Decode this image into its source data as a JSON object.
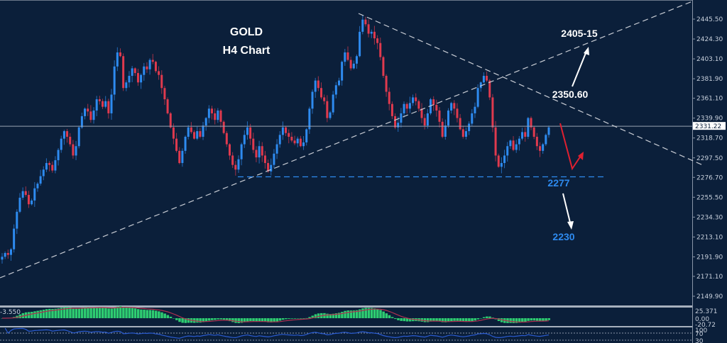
{
  "chart_data": {
    "type": "candlestick",
    "title": "GOLD",
    "subtitle": "H4 Chart",
    "symbol": "GOLD",
    "timeframe": "H4",
    "current_price": "2331.22",
    "y_axis": {
      "ticks": [
        "2445.50",
        "2424.30",
        "2403.10",
        "2381.90",
        "2361.10",
        "2339.90",
        "2318.70",
        "2297.50",
        "2276.70",
        "2255.50",
        "2234.30",
        "2213.10",
        "2191.90",
        "2171.10",
        "2149.90"
      ],
      "range": [
        2140,
        2465
      ]
    },
    "annotations": {
      "target_up_label": "2405-15",
      "pivot_label": "2350.60",
      "support_label": "2277",
      "target_down_label": "2230"
    },
    "closes": [
      2192,
      2196,
      2194,
      2200,
      2222,
      2240,
      2255,
      2262,
      2258,
      2248,
      2252,
      2265,
      2270,
      2278,
      2285,
      2292,
      2290,
      2284,
      2295,
      2306,
      2318,
      2326,
      2320,
      2312,
      2300,
      2310,
      2330,
      2342,
      2350,
      2347,
      2338,
      2348,
      2360,
      2358,
      2352,
      2358,
      2345,
      2365,
      2395,
      2410,
      2406,
      2372,
      2378,
      2385,
      2393,
      2388,
      2378,
      2386,
      2395,
      2392,
      2402,
      2400,
      2390,
      2386,
      2372,
      2360,
      2345,
      2330,
      2318,
      2305,
      2292,
      2305,
      2320,
      2330,
      2325,
      2318,
      2326,
      2320,
      2332,
      2340,
      2350,
      2345,
      2338,
      2348,
      2336,
      2324,
      2312,
      2300,
      2290,
      2285,
      2296,
      2312,
      2322,
      2330,
      2318,
      2306,
      2298,
      2310,
      2300,
      2292,
      2283,
      2290,
      2302,
      2312,
      2322,
      2330,
      2324,
      2320,
      2316,
      2313,
      2318,
      2310,
      2314,
      2328,
      2350,
      2368,
      2380,
      2372,
      2362,
      2358,
      2340,
      2346,
      2365,
      2375,
      2380,
      2400,
      2410,
      2402,
      2393,
      2398,
      2406,
      2432,
      2445,
      2440,
      2430,
      2432,
      2425,
      2420,
      2405,
      2385,
      2368,
      2355,
      2342,
      2330,
      2335,
      2345,
      2355,
      2350,
      2356,
      2362,
      2358,
      2350,
      2340,
      2332,
      2345,
      2360,
      2354,
      2348,
      2336,
      2320,
      2332,
      2348,
      2356,
      2350,
      2340,
      2328,
      2320,
      2326,
      2334,
      2345,
      2352,
      2372,
      2378,
      2385,
      2380,
      2362,
      2330,
      2300,
      2288,
      2292,
      2300,
      2310,
      2316,
      2306,
      2312,
      2318,
      2325,
      2320,
      2340,
      2330,
      2320,
      2310,
      2305,
      2312,
      2322,
      2330
    ],
    "indicators": {
      "macd": {
        "label": "-3.550",
        "levels": [
          "25.371",
          "0.00",
          "-20.72"
        ]
      },
      "rsi": {
        "levels": [
          "100",
          "70",
          "30"
        ]
      }
    },
    "colors": {
      "background": "#0b1f3a",
      "bull": "#2e8bf0",
      "bear": "#e03a4e",
      "grid_line": "#8a96a8",
      "macd_hist": "#2ecc71",
      "macd_signal": "#b03050",
      "rsi_line": "#2a5bd0"
    }
  }
}
